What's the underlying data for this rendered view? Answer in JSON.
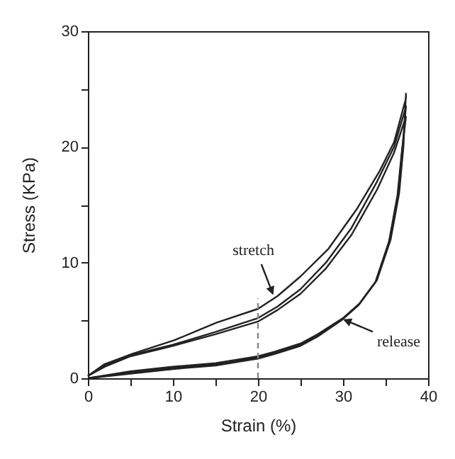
{
  "chart_data": {
    "type": "line",
    "xlabel": "Strain (%)",
    "ylabel": "Stress (KPa)",
    "xlim": [
      0,
      40
    ],
    "ylim": [
      0,
      30
    ],
    "xticks": [
      0,
      {
        "value": 5,
        "label": null
      },
      10,
      {
        "value": 15,
        "label": null
      },
      20,
      {
        "value": 25,
        "label": null
      },
      30,
      {
        "value": 35,
        "label": null
      },
      40
    ],
    "yticks": [
      0,
      {
        "value": 5,
        "label": null
      },
      10,
      {
        "value": 15,
        "label": null
      },
      20,
      {
        "value": 25,
        "label": null
      },
      30
    ],
    "grid": false,
    "marker": "none",
    "series": [
      {
        "color": "#222222",
        "x": [
          0,
          1.9,
          5.2,
          10.2,
          15.1,
          20,
          22.3,
          25,
          28.3,
          31.6,
          34.3,
          36,
          37.4,
          37.4,
          37.1,
          36.6,
          35.6,
          34,
          32,
          30,
          27,
          25,
          22,
          20,
          15,
          10,
          5,
          0
        ],
        "values": [
          0.2,
          1.2,
          2.1,
          3.3,
          4.8,
          6,
          7.1,
          8.8,
          11.2,
          14.6,
          17.9,
          20.4,
          24.2,
          24.6,
          20,
          16,
          12,
          8.5,
          6.5,
          5.2,
          3.8,
          3,
          2.3,
          1.9,
          1.3,
          1,
          0.6,
          0
        ]
      },
      {
        "color": "#222222",
        "x": [
          0,
          2,
          5,
          10,
          15,
          20,
          22.3,
          25,
          28,
          31,
          34,
          36,
          37.3,
          37.4,
          37,
          36.5,
          35.5,
          33.9,
          31.9,
          29.9,
          27,
          25,
          22,
          20,
          15,
          10,
          5,
          0
        ],
        "values": [
          0.2,
          1.1,
          2,
          2.9,
          4,
          5.2,
          6.2,
          7.7,
          10,
          13,
          17,
          20,
          23.2,
          23.5,
          20,
          16,
          12,
          8.4,
          6.4,
          5.1,
          3.7,
          2.9,
          2.2,
          1.8,
          1.2,
          0.9,
          0.5,
          0
        ]
      },
      {
        "color": "#222222",
        "x": [
          0,
          2,
          5,
          10,
          15,
          20,
          22.3,
          25,
          28,
          31,
          34,
          36,
          37.4,
          36.9,
          36.4,
          35.4,
          33.8,
          31.8,
          29.8,
          27,
          25,
          22,
          20,
          15,
          10,
          5,
          0
        ],
        "values": [
          0.2,
          1,
          1.9,
          2.8,
          3.8,
          4.9,
          5.9,
          7.3,
          9.5,
          12.4,
          16.3,
          19.5,
          22.6,
          19.5,
          15.8,
          11.8,
          8.3,
          6.3,
          5,
          3.6,
          2.8,
          2.1,
          1.7,
          1.1,
          0.8,
          0.4,
          0
        ]
      },
      {
        "color": "#888888",
        "line_style": "dashed",
        "x": [
          20,
          20
        ],
        "values": [
          0,
          6.9
        ]
      }
    ],
    "annotations": [
      {
        "text": "stretch",
        "x": 21.8,
        "y": 7.2
      },
      {
        "text": "release",
        "x": 30,
        "y": 5.1
      }
    ]
  }
}
